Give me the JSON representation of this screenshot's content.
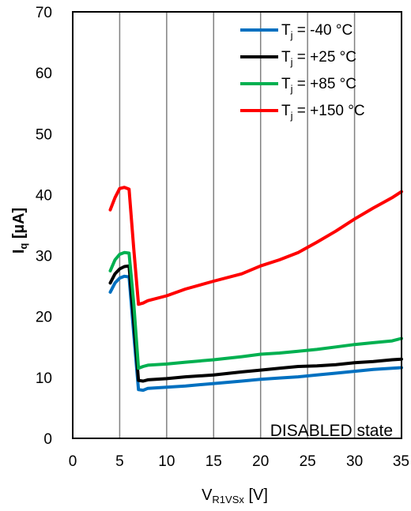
{
  "chart_data": {
    "type": "line",
    "xlabel": {
      "main": "V",
      "sub": "R1VSx",
      "unit": " [V]"
    },
    "ylabel": {
      "main": "I",
      "sub": "q",
      "unit": " [µA]"
    },
    "xlim": [
      0,
      35
    ],
    "ylim": [
      0,
      70
    ],
    "xticks": [
      "0",
      "5",
      "10",
      "15",
      "20",
      "25",
      "30",
      "35"
    ],
    "yticks": [
      "0",
      "10",
      "20",
      "30",
      "40",
      "50",
      "60",
      "70"
    ],
    "grid": "vertical",
    "legend_position": "top-right",
    "annotation": "DISABLED state",
    "series": [
      {
        "name": "-40 °C",
        "legend": {
          "main": "T",
          "sub": "j",
          "rest": " = -40 °C"
        },
        "color": "#0070C0",
        "points": [
          [
            4,
            24
          ],
          [
            4.5,
            25.5
          ],
          [
            5,
            26.3
          ],
          [
            5.5,
            26.6
          ],
          [
            6,
            26.5
          ],
          [
            6.5,
            17
          ],
          [
            7,
            8
          ],
          [
            7.5,
            7.9
          ],
          [
            8,
            8.2
          ],
          [
            10,
            8.4
          ],
          [
            12,
            8.6
          ],
          [
            15,
            9
          ],
          [
            18,
            9.4
          ],
          [
            20,
            9.7
          ],
          [
            22,
            9.9
          ],
          [
            24,
            10.1
          ],
          [
            26,
            10.4
          ],
          [
            28,
            10.7
          ],
          [
            30,
            11
          ],
          [
            32,
            11.3
          ],
          [
            34,
            11.5
          ],
          [
            35,
            11.6
          ]
        ]
      },
      {
        "name": "+25 °C",
        "legend": {
          "main": "T",
          "sub": "j",
          "rest": " = +25 °C"
        },
        "color": "#000000",
        "points": [
          [
            4,
            25.5
          ],
          [
            4.5,
            27
          ],
          [
            5,
            27.8
          ],
          [
            5.5,
            28.2
          ],
          [
            6,
            28.3
          ],
          [
            6.5,
            19
          ],
          [
            7,
            9.5
          ],
          [
            7.5,
            9.4
          ],
          [
            8,
            9.6
          ],
          [
            10,
            9.8
          ],
          [
            12,
            10.1
          ],
          [
            15,
            10.4
          ],
          [
            18,
            10.9
          ],
          [
            20,
            11.2
          ],
          [
            22,
            11.5
          ],
          [
            24,
            11.8
          ],
          [
            26,
            11.9
          ],
          [
            28,
            12.1
          ],
          [
            30,
            12.4
          ],
          [
            32,
            12.6
          ],
          [
            34,
            12.9
          ],
          [
            35,
            13
          ]
        ]
      },
      {
        "name": "+85 °C",
        "legend": {
          "main": "T",
          "sub": "j",
          "rest": " = +85 °C"
        },
        "color": "#00B050",
        "points": [
          [
            4,
            27.5
          ],
          [
            4.5,
            29.3
          ],
          [
            5,
            30.2
          ],
          [
            5.5,
            30.5
          ],
          [
            6,
            30.4
          ],
          [
            6.5,
            22
          ],
          [
            7,
            11.5
          ],
          [
            7.5,
            11.8
          ],
          [
            8,
            12
          ],
          [
            10,
            12.2
          ],
          [
            12,
            12.5
          ],
          [
            15,
            12.9
          ],
          [
            18,
            13.4
          ],
          [
            20,
            13.8
          ],
          [
            22,
            14
          ],
          [
            24,
            14.3
          ],
          [
            26,
            14.6
          ],
          [
            28,
            15
          ],
          [
            30,
            15.4
          ],
          [
            32,
            15.7
          ],
          [
            34,
            16
          ],
          [
            35,
            16.4
          ]
        ]
      },
      {
        "name": "+150 °C",
        "legend": {
          "main": "T",
          "sub": "j",
          "rest": " = +150 °C"
        },
        "color": "#FF0000",
        "points": [
          [
            4,
            37.5
          ],
          [
            4.5,
            39.5
          ],
          [
            5,
            41
          ],
          [
            5.5,
            41.2
          ],
          [
            6,
            40.9
          ],
          [
            6.5,
            31
          ],
          [
            7,
            22
          ],
          [
            7.5,
            22.2
          ],
          [
            8,
            22.6
          ],
          [
            10,
            23.4
          ],
          [
            12,
            24.5
          ],
          [
            15,
            25.8
          ],
          [
            18,
            27
          ],
          [
            20,
            28.3
          ],
          [
            22,
            29.3
          ],
          [
            24,
            30.5
          ],
          [
            26,
            32.2
          ],
          [
            28,
            34
          ],
          [
            30,
            36
          ],
          [
            32,
            37.8
          ],
          [
            34,
            39.5
          ],
          [
            35,
            40.5
          ]
        ]
      }
    ]
  }
}
